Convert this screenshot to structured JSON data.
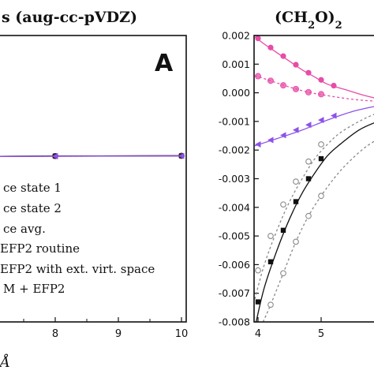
{
  "chart_data": [
    {
      "type": "line",
      "title": "s (aug-cc-pVDZ)",
      "panel_label": "A",
      "xlim": [
        6.2,
        10
      ],
      "ylim": [
        -0.008,
        0.002
      ],
      "x_ticks": [
        "8",
        "9",
        "10"
      ],
      "x_tick_values": [
        8,
        9,
        10
      ],
      "xlabel": "Å",
      "series": [
        {
          "name": "ce state 1",
          "color": "#7b7b7b",
          "marker": "circle-open",
          "dash": "",
          "x": [
            6.2,
            7,
            8,
            10
          ],
          "y": [
            -0.0045,
            -0.0043,
            -0.0041,
            -0.0039
          ]
        },
        {
          "name": "ce state 2",
          "color": "#a0a0a0",
          "marker": "circle-open",
          "dash": "4,3",
          "x": [
            6.2,
            7,
            8,
            10
          ],
          "y": [
            -0.0045,
            -0.0044,
            -0.0042,
            -0.004
          ]
        },
        {
          "name": "ce avg.",
          "color": "#333333",
          "marker": "circle-open",
          "dash": "",
          "x": [
            6.2,
            7,
            8,
            10
          ],
          "y": [
            -0.0045,
            -0.0043,
            -0.0041,
            -0.0039
          ]
        },
        {
          "name": "EFP2 routine",
          "color": "#e74ca6",
          "marker": "circle",
          "dash": "",
          "x": [
            6.2,
            7,
            8,
            10
          ],
          "y": [
            -0.0044,
            -0.0043,
            -0.0042,
            -0.0039
          ]
        },
        {
          "name": "EFP2 with ext. virt. space",
          "color": "#222222",
          "marker": "square",
          "dash": "",
          "x": [
            6.2,
            7,
            8,
            10
          ],
          "y": [
            -0.0045,
            -0.0043,
            -0.00405,
            -0.0039
          ]
        },
        {
          "name": "M + EFP2",
          "color": "#8c52e8",
          "marker": "triangle",
          "dash": "",
          "x": [
            6.2,
            7,
            8,
            10
          ],
          "y": [
            -0.0046,
            -0.0044,
            -0.0042,
            -0.004
          ]
        }
      ]
    },
    {
      "type": "line",
      "title": "(CH2O)2",
      "title_parts": {
        "pre": "(CH",
        "sub1": "2",
        "mid": "O)",
        "sub2": "2"
      },
      "xlim": [
        3.95,
        6.2
      ],
      "ylim": [
        -0.008,
        0.002
      ],
      "x_ticks": [
        "4",
        "5",
        "6"
      ],
      "x_tick_values": [
        4,
        5,
        6
      ],
      "y_ticks": [
        "0.002",
        "0.001",
        "0.000",
        "-0.001",
        "-0.002",
        "-0.003",
        "-0.004",
        "-0.005",
        "-0.006",
        "-0.007",
        "-0.008"
      ],
      "y_tick_values": [
        0.002,
        0.001,
        0.0,
        -0.001,
        -0.002,
        -0.003,
        -0.004,
        -0.005,
        -0.006,
        -0.007,
        -0.008
      ],
      "series": [
        {
          "color": "#e74ca6",
          "dash": "",
          "marker": "circle",
          "curve_x": [
            3.95,
            4.1,
            4.3,
            4.5,
            4.7,
            4.9,
            5.1,
            5.4,
            5.7,
            6.0,
            6.2
          ],
          "curve_y": [
            0.00195,
            0.0017,
            0.0014,
            0.0011,
            0.0008,
            0.00055,
            0.0003,
            0.0001,
            -0.0001,
            -0.00025,
            -0.0003
          ],
          "marker_x": [
            4.0,
            4.2,
            4.4,
            4.6,
            4.8,
            5.0,
            5.2
          ],
          "marker_y": [
            0.0019,
            0.00158,
            0.00128,
            0.00098,
            0.0007,
            0.00045,
            0.00025
          ]
        },
        {
          "color": "#e74ca6",
          "dash": "3,3",
          "marker": "circle-half",
          "curve_x": [
            3.95,
            4.2,
            4.5,
            4.8,
            5.1,
            5.4,
            5.7,
            6.0,
            6.2
          ],
          "curve_y": [
            0.0006,
            0.00042,
            0.0002,
            2e-05,
            -0.0001,
            -0.0002,
            -0.00027,
            -0.0003,
            -0.0003
          ],
          "marker_x": [
            4.0,
            4.2,
            4.4,
            4.6,
            4.8,
            5.0
          ],
          "marker_y": [
            0.00058,
            0.00042,
            0.00026,
            0.00013,
            2e-05,
            -5e-05
          ]
        },
        {
          "color": "#8c52e8",
          "dash": "",
          "marker": "triangle",
          "curve_x": [
            3.95,
            4.3,
            4.7,
            5.1,
            5.5,
            5.9,
            6.2
          ],
          "curve_y": [
            -0.00185,
            -0.0016,
            -0.0013,
            -0.00095,
            -0.00065,
            -0.00045,
            -0.0003
          ],
          "marker_x": [
            4.0,
            4.2,
            4.4,
            4.6,
            4.8,
            5.0,
            5.2
          ],
          "marker_y": [
            -0.0018,
            -0.00165,
            -0.00148,
            -0.0013,
            -0.00112,
            -0.00095,
            -0.0008
          ]
        },
        {
          "color": "#111111",
          "dash": "",
          "marker": "square",
          "curve_x": [
            3.97,
            4.1,
            4.3,
            4.5,
            4.7,
            4.9,
            5.1,
            5.3,
            5.6,
            5.9,
            6.2
          ],
          "curve_y": [
            -0.008,
            -0.0068,
            -0.0055,
            -0.0044,
            -0.0035,
            -0.0028,
            -0.0022,
            -0.0018,
            -0.0013,
            -0.001,
            -0.0008
          ],
          "marker_x": [
            4.0,
            4.2,
            4.4,
            4.6,
            4.8,
            5.0
          ],
          "marker_y": [
            -0.0073,
            -0.0059,
            -0.0048,
            -0.0038,
            -0.003,
            -0.0023
          ]
        },
        {
          "color": "#888888",
          "dash": "3,3",
          "marker": "circle-open",
          "curve_x": [
            3.95,
            4.1,
            4.3,
            4.5,
            4.7,
            4.9,
            5.1,
            5.3,
            5.6,
            5.9,
            6.2
          ],
          "curve_y": [
            -0.0072,
            -0.006,
            -0.0048,
            -0.0038,
            -0.003,
            -0.0023,
            -0.0018,
            -0.0014,
            -0.001,
            -0.0007,
            -0.0005
          ],
          "marker_x": [
            4.0,
            4.2,
            4.4,
            4.6,
            4.8,
            5.0
          ],
          "marker_y": [
            -0.0062,
            -0.005,
            -0.0039,
            -0.0031,
            -0.0024,
            -0.0018
          ]
        },
        {
          "color": "#888888",
          "dash": "3,3",
          "marker": "circle-open",
          "curve_x": [
            4.08,
            4.2,
            4.4,
            4.6,
            4.8,
            5.0,
            5.2,
            5.4,
            5.7,
            6.0,
            6.2
          ],
          "curve_y": [
            -0.008,
            -0.0074,
            -0.0063,
            -0.0052,
            -0.0043,
            -0.0036,
            -0.003,
            -0.0025,
            -0.0019,
            -0.0015,
            -0.0013
          ],
          "marker_x": [
            4.2,
            4.4,
            4.6,
            4.8,
            5.0
          ],
          "marker_y": [
            -0.0074,
            -0.0063,
            -0.0052,
            -0.0043,
            -0.0036
          ]
        }
      ]
    }
  ]
}
